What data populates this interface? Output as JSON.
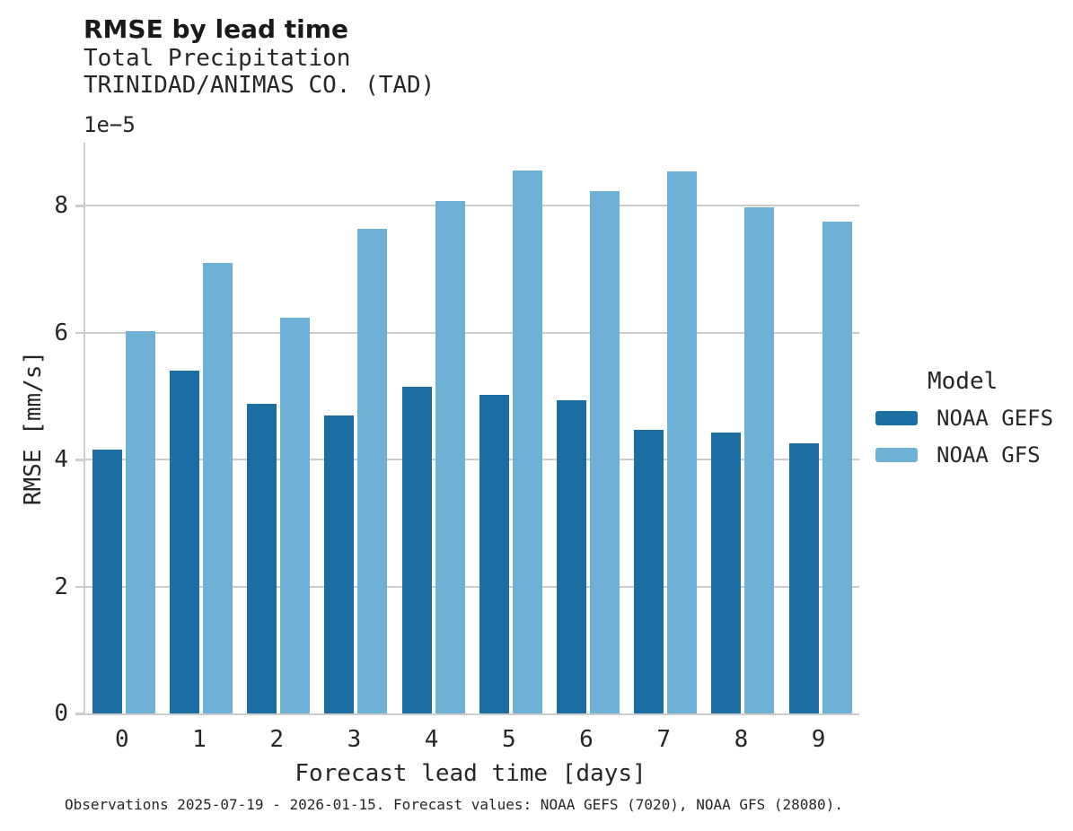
{
  "footer": {
    "text": "Observations 2025-07-19 - 2026-01-15. Forecast values: NOAA GEFS (7020), NOAA GFS (28080)."
  },
  "colors": {
    "gefs_dark_blue": "#1c6ea2",
    "gfs_light_blue": "#6eb1d7",
    "grid_gray": "#cccccc",
    "text_dark": "#262626"
  },
  "chart_data": {
    "type": "bar",
    "title": "RMSE by lead time",
    "subtitle": "Total Precipitation",
    "station": "TRINIDAD/ANIMAS CO. (TAD)",
    "xlabel": "Forecast lead time [days]",
    "ylabel": "RMSE [mm/s]",
    "y_offset_label": "1e−5",
    "value_scale": 1e-05,
    "categories": [
      "0",
      "1",
      "2",
      "3",
      "4",
      "5",
      "6",
      "7",
      "8",
      "9"
    ],
    "series": [
      {
        "name": "NOAA GEFS",
        "color": "#1c6ea2",
        "values": [
          4.16,
          5.4,
          4.87,
          4.7,
          5.15,
          5.02,
          4.93,
          4.46,
          4.43,
          4.26
        ]
      },
      {
        "name": "NOAA GFS",
        "color": "#6eb1d7",
        "values": [
          6.02,
          7.09,
          6.23,
          7.63,
          8.07,
          8.55,
          8.23,
          8.54,
          7.97,
          7.74
        ]
      }
    ],
    "ylim": [
      0,
      8.99
    ],
    "yticks": [
      0,
      2,
      4,
      6,
      8
    ],
    "grid": "horizontal",
    "legend_title": "Model",
    "legend_position": "right"
  }
}
